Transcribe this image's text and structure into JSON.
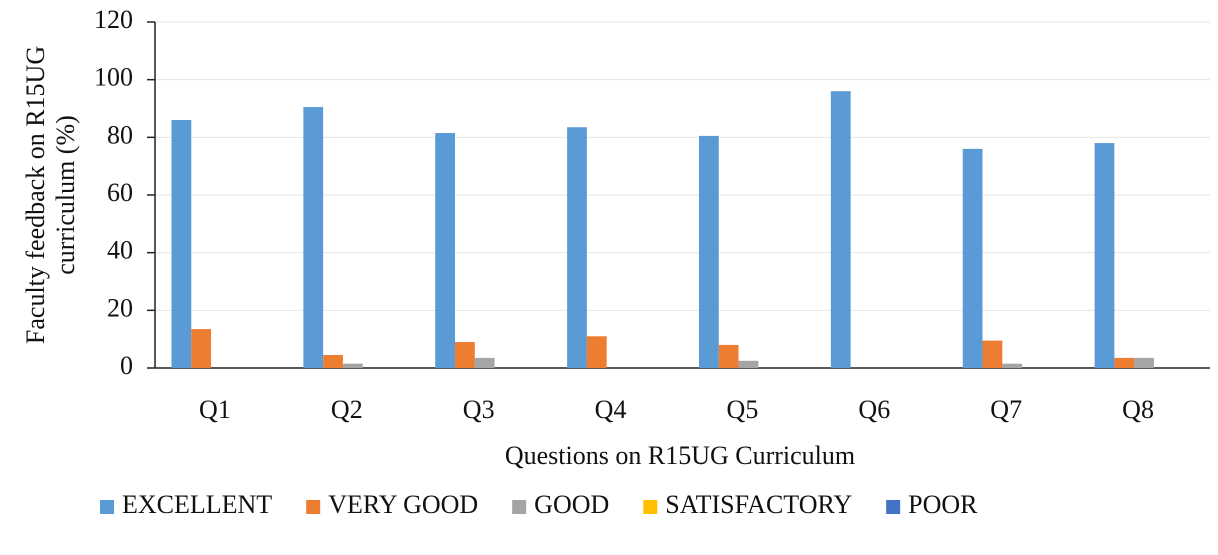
{
  "chart_data": {
    "type": "bar",
    "x_label": "Questions on R15UG Curriculum",
    "y_label": [
      "Faculty feedback on R15UG",
      "curriculum (%)"
    ],
    "categories": [
      "Q1",
      "Q2",
      "Q3",
      "Q4",
      "Q5",
      "Q6",
      "Q7",
      "Q8"
    ],
    "series": [
      {
        "name": "EXCELLENT",
        "color": "#5b9bd5",
        "values": [
          86,
          90.5,
          81.5,
          83.5,
          80.5,
          96,
          76,
          78
        ]
      },
      {
        "name": "VERY GOOD",
        "color": "#ed7d31",
        "values": [
          13.5,
          4.5,
          9,
          11,
          8,
          0,
          9.5,
          3.5
        ]
      },
      {
        "name": "GOOD",
        "color": "#a5a5a5",
        "values": [
          0,
          1.5,
          3.5,
          0,
          2.5,
          0,
          1.5,
          3.5
        ]
      },
      {
        "name": "SATISFACTORY",
        "color": "#ffc000",
        "values": [
          0,
          0,
          0,
          0,
          0,
          0,
          0,
          0
        ]
      },
      {
        "name": "POOR",
        "color": "#4472c4",
        "values": [
          0,
          0,
          0,
          0,
          0,
          0,
          0,
          0
        ]
      }
    ],
    "ylim": [
      0,
      120
    ],
    "yticks": [
      0,
      20,
      40,
      60,
      80,
      100,
      120
    ],
    "grid": true,
    "legend": "bottom"
  }
}
